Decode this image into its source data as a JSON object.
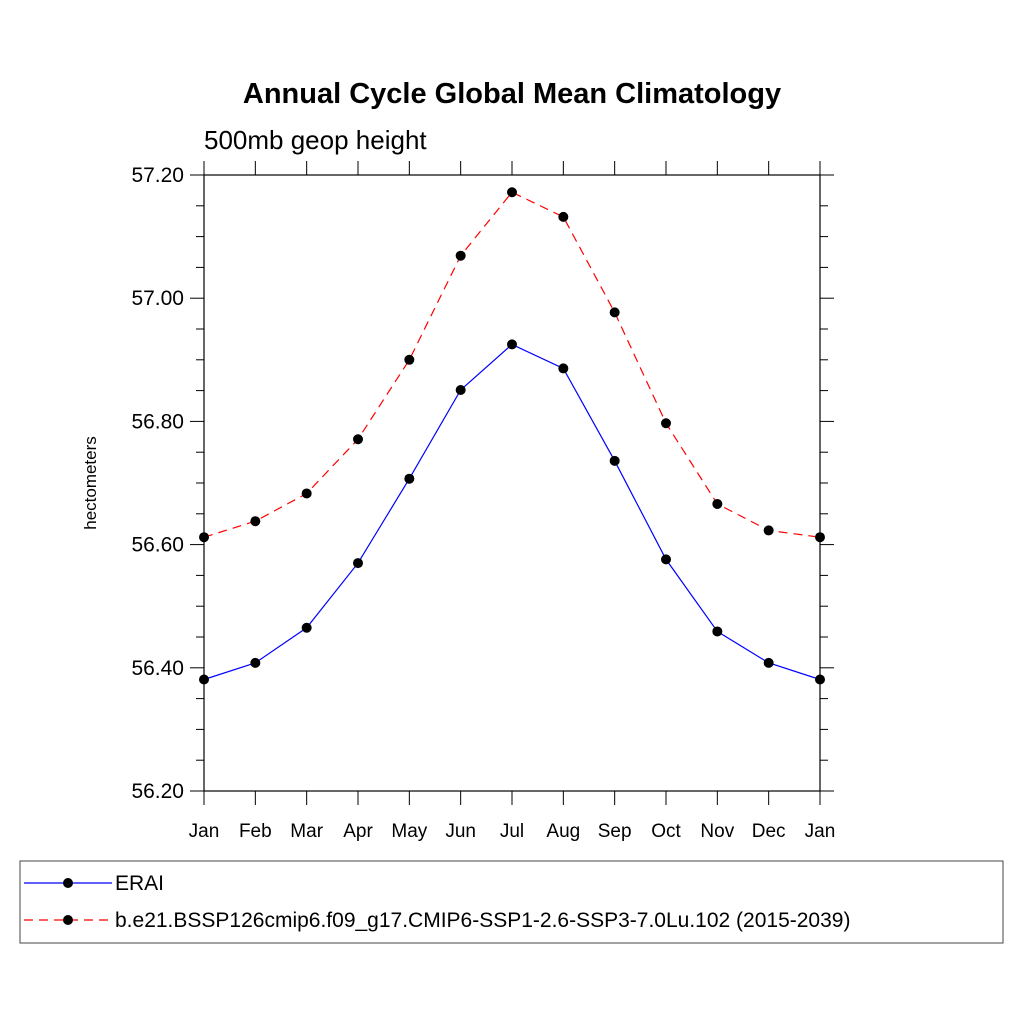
{
  "chart_data": {
    "type": "line",
    "title": "Annual Cycle Global Mean Climatology",
    "subtitle": "500mb geop height",
    "ylabel": "hectometers",
    "xlabel": "",
    "categories": [
      "Jan",
      "Feb",
      "Mar",
      "Apr",
      "May",
      "Jun",
      "Jul",
      "Aug",
      "Sep",
      "Oct",
      "Nov",
      "Dec",
      "Jan"
    ],
    "ylim": [
      56.2,
      57.2
    ],
    "yticks": [
      "56.20",
      "56.40",
      "56.60",
      "56.80",
      "57.00",
      "57.20"
    ],
    "grid": false,
    "legend_position": "bottom",
    "series": [
      {
        "name": "ERAI",
        "color": "#0000ff",
        "dash": "solid",
        "marker": "filled-circle",
        "values": [
          56.381,
          56.408,
          56.465,
          56.57,
          56.707,
          56.851,
          56.925,
          56.886,
          56.736,
          56.576,
          56.459,
          56.408,
          56.381
        ]
      },
      {
        "name": "b.e21.BSSP126cmip6.f09_g17.CMIP6-SSP1-2.6-SSP3-7.0Lu.102 (2015-2039)",
        "color": "#ff0000",
        "dash": "dashed",
        "marker": "filled-circle",
        "values": [
          56.612,
          56.638,
          56.683,
          56.771,
          56.9,
          57.069,
          57.172,
          57.132,
          56.977,
          56.797,
          56.666,
          56.623,
          56.612
        ]
      }
    ]
  }
}
